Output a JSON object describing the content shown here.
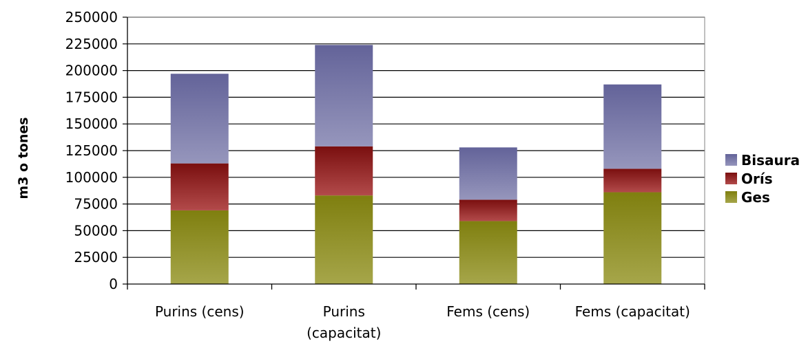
{
  "chart_data": {
    "type": "bar",
    "stacked": true,
    "title": "",
    "xlabel": "",
    "ylabel": "m3 o tones",
    "ylim": [
      0,
      250000
    ],
    "yticks": [
      0,
      25000,
      50000,
      75000,
      100000,
      125000,
      150000,
      175000,
      200000,
      225000,
      250000
    ],
    "grid": true,
    "legend_position": "right",
    "categories": [
      [
        "Purins (cens)"
      ],
      [
        "Purins",
        "(capacitat)"
      ],
      [
        "Fems (cens)"
      ],
      [
        "Fems (capacitat)"
      ]
    ],
    "series": [
      {
        "name": "Ges",
        "values": [
          69000,
          83000,
          59000,
          86000
        ],
        "color_top": "#7f7f0f",
        "color_bottom": "#a6a64a"
      },
      {
        "name": "Orís",
        "values": [
          44000,
          46000,
          20000,
          22000
        ],
        "color_top": "#7a0f0f",
        "color_bottom": "#b24a4a"
      },
      {
        "name": "Bisaura",
        "values": [
          84000,
          95000,
          49000,
          79000
        ],
        "color_top": "#636399",
        "color_bottom": "#9696bc"
      }
    ],
    "legend_order": [
      "Bisaura",
      "Orís",
      "Ges"
    ]
  }
}
